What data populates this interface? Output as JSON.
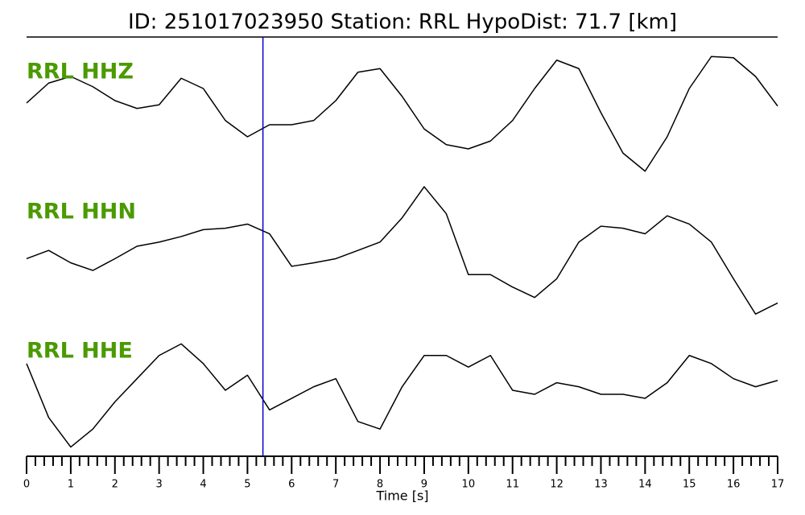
{
  "chart_data": {
    "type": "line",
    "title": "ID: 251017023950   Station: RRL   HypoDist:    71.7 [km]",
    "xlabel": "Time [s]",
    "xlim": [
      0,
      17
    ],
    "xticks": [
      0,
      1,
      2,
      3,
      4,
      5,
      6,
      7,
      8,
      9,
      10,
      11,
      12,
      13,
      14,
      15,
      16,
      17
    ],
    "xminorticks": [
      0.2,
      0.4,
      0.6,
      0.8,
      1.2,
      1.4,
      1.6,
      1.8,
      2.2,
      2.4,
      2.6,
      2.8,
      3.2,
      3.4,
      3.6,
      3.8,
      4.2,
      4.4,
      4.6,
      4.8,
      5.2,
      5.4,
      5.6,
      5.8,
      6.2,
      6.4,
      6.6,
      6.8,
      7.2,
      7.4,
      7.6,
      7.8,
      8.2,
      8.4,
      8.6,
      8.8,
      9.2,
      9.4,
      9.6,
      9.8,
      10.2,
      10.4,
      10.6,
      10.8,
      11.2,
      11.4,
      11.6,
      11.8,
      12.2,
      12.4,
      12.6,
      12.8,
      13.2,
      13.4,
      13.6,
      13.8,
      14.2,
      14.4,
      14.6,
      14.8,
      15.2,
      15.4,
      15.6,
      15.8,
      16.2,
      16.4,
      16.6,
      16.8
    ],
    "pick_time": 5.35,
    "pick_color": "#0000cc",
    "label_color": "#4a9a00",
    "ylim": [
      -1,
      1
    ],
    "x": [
      0,
      0.5,
      1,
      1.5,
      2,
      2.5,
      3,
      3.5,
      4,
      4.5,
      5,
      5.5,
      6,
      6.5,
      7,
      7.5,
      8,
      8.5,
      9,
      9.5,
      10,
      10.5,
      11,
      11.5,
      12,
      12.5,
      13,
      13.5,
      14,
      14.5,
      15,
      15.5,
      16,
      16.5,
      17
    ],
    "series": [
      {
        "name": "RRL HHZ",
        "color": "#000000",
        "values": [
          0.16,
          0.49,
          0.6,
          0.43,
          0.2,
          0.07,
          0.13,
          0.57,
          0.4,
          -0.13,
          -0.4,
          -0.2,
          -0.2,
          -0.13,
          0.2,
          0.67,
          0.73,
          0.27,
          -0.27,
          -0.53,
          -0.6,
          -0.47,
          -0.13,
          0.4,
          0.87,
          0.73,
          0,
          -0.67,
          -0.97,
          -0.4,
          0.4,
          0.93,
          0.91,
          0.6,
          0.11
        ]
      },
      {
        "name": "RRL HHN",
        "color": "#000000",
        "values": [
          -0.18,
          -0.06,
          -0.24,
          -0.35,
          -0.18,
          0,
          0.06,
          0.14,
          0.24,
          0.26,
          0.32,
          0.18,
          -0.29,
          -0.24,
          -0.18,
          -0.06,
          0.06,
          0.41,
          0.86,
          0.47,
          -0.41,
          -0.41,
          -0.59,
          -0.74,
          -0.47,
          0.06,
          0.29,
          0.26,
          0.18,
          0.44,
          0.32,
          0.06,
          -0.47,
          -0.98,
          -0.82
        ]
      },
      {
        "name": "RRL HHE",
        "color": "#000000",
        "values": [
          0.53,
          -0.4,
          -0.91,
          -0.6,
          -0.13,
          0.27,
          0.67,
          0.87,
          0.53,
          0.07,
          0.33,
          -0.27,
          -0.07,
          0.13,
          0.27,
          -0.47,
          -0.6,
          0.13,
          0.67,
          0.67,
          0.47,
          0.67,
          0.07,
          0,
          0.2,
          0.13,
          0,
          0,
          -0.07,
          0.2,
          0.67,
          0.53,
          0.27,
          0.13,
          0.24
        ]
      }
    ]
  }
}
